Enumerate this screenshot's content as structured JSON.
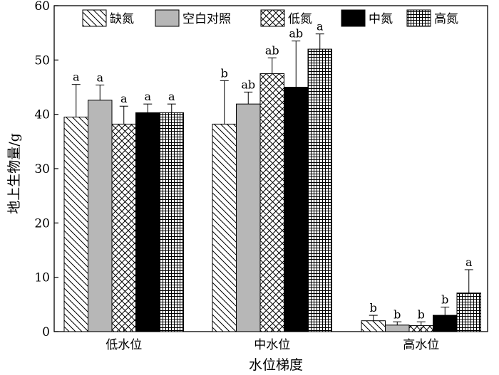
{
  "chart_data": {
    "type": "bar",
    "title": "",
    "xlabel": "水位梯度",
    "ylabel": "地上生物量/g",
    "ylim": [
      0,
      60
    ],
    "yticks": [
      0,
      10,
      20,
      30,
      40,
      50,
      60
    ],
    "categories": [
      "低水位",
      "中水位",
      "高水位"
    ],
    "legend_position": "top",
    "series": [
      {
        "name": "缺氮",
        "pattern": "diagonal-hatch",
        "color": "#ffffff",
        "values": [
          39.5,
          38.2,
          2.0
        ],
        "errors": [
          6.0,
          8.0,
          1.0
        ],
        "labels": [
          "a",
          "b",
          "b"
        ]
      },
      {
        "name": "空白对照",
        "pattern": "solid",
        "color": "#b7b7b7",
        "values": [
          42.6,
          41.9,
          1.2
        ],
        "errors": [
          2.8,
          2.2,
          0.6
        ],
        "labels": [
          "a",
          "ab",
          "b"
        ]
      },
      {
        "name": "低氮",
        "pattern": "cross-hatch",
        "color": "#ffffff",
        "values": [
          38.2,
          47.5,
          1.1
        ],
        "errors": [
          3.3,
          2.9,
          0.7
        ],
        "labels": [
          "a",
          "ab",
          "b"
        ]
      },
      {
        "name": "中氮",
        "pattern": "solid",
        "color": "#000000",
        "values": [
          40.3,
          45.0,
          3.0
        ],
        "errors": [
          1.6,
          8.5,
          1.5
        ],
        "labels": [
          "a",
          "ab",
          "b"
        ]
      },
      {
        "name": "高氮",
        "pattern": "grid",
        "color": "#ffffff",
        "values": [
          40.3,
          52.0,
          7.1
        ],
        "errors": [
          1.6,
          2.8,
          4.3
        ],
        "labels": [
          "a",
          "a",
          "a"
        ]
      }
    ]
  }
}
